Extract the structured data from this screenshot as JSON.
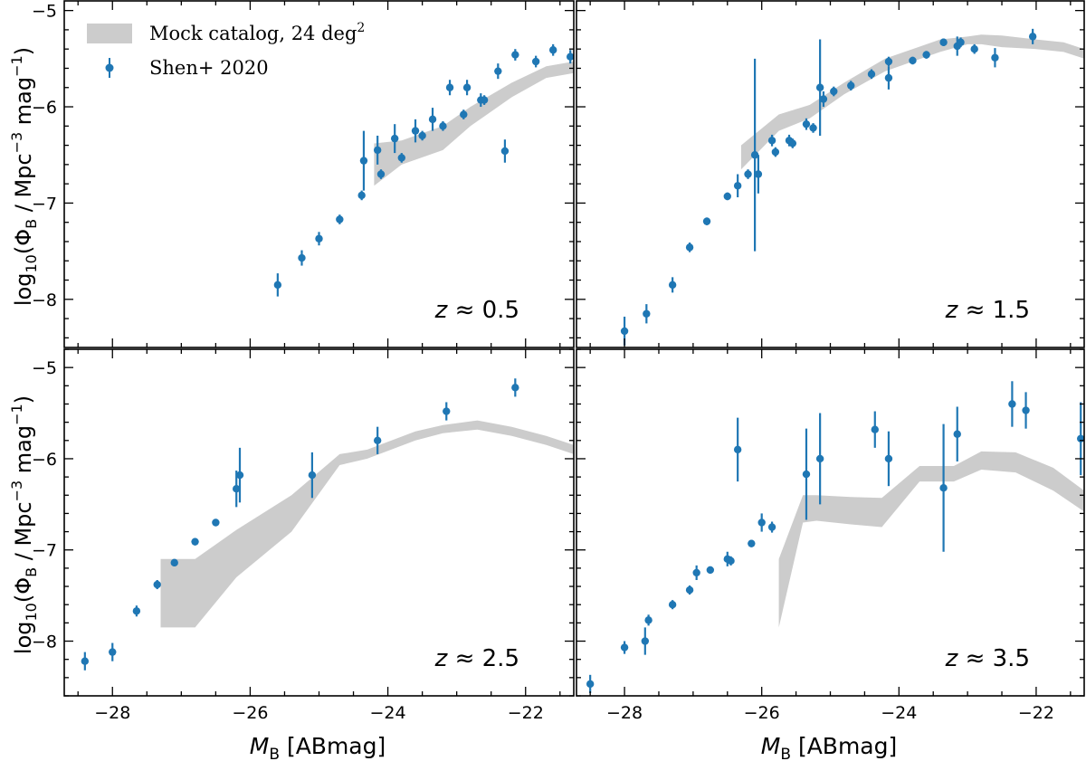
{
  "legend": {
    "band_label": "Mock catalog, 24 deg",
    "band_label_sup": "2",
    "points_label": "Shen+ 2020"
  },
  "labels": {
    "ylabel_prefix": "log",
    "ylabel_sub": "10",
    "ylabel_open": "(Φ",
    "ylabel_phi_sub": "B",
    "ylabel_units": " / Mpc",
    "ylabel_exp1": "−3",
    "ylabel_mag": " mag",
    "ylabel_exp2": "−1",
    "ylabel_close": ")",
    "xlabel_M": "M",
    "xlabel_sub": "B",
    "xlabel_unit": " [ABmag]"
  },
  "colors": {
    "points": "#1f77b4",
    "band": "#cccccc",
    "axes": "#000000"
  },
  "chart_data": [
    {
      "type": "scatter",
      "panel": "top-left",
      "annotation": "z ≈ 0.5",
      "xlim": [
        -28.7,
        -21.3
      ],
      "ylim": [
        -8.5,
        -4.9
      ],
      "xticks": [
        -28,
        -26,
        -24,
        -22
      ],
      "yticks": [
        -8,
        -7,
        -6,
        -5
      ],
      "band": [
        {
          "x": -24.2,
          "lo": -6.82,
          "hi": -6.38
        },
        {
          "x": -23.8,
          "lo": -6.6,
          "hi": -6.35
        },
        {
          "x": -23.2,
          "lo": -6.45,
          "hi": -6.2
        },
        {
          "x": -22.8,
          "lo": -6.2,
          "hi": -6.0
        },
        {
          "x": -22.2,
          "lo": -5.9,
          "hi": -5.75
        },
        {
          "x": -21.7,
          "lo": -5.7,
          "hi": -5.58
        },
        {
          "x": -21.3,
          "lo": -5.65,
          "hi": -5.53
        }
      ],
      "points": [
        {
          "x": -25.6,
          "y": -7.85,
          "err": 0.12
        },
        {
          "x": -25.25,
          "y": -7.57,
          "err": 0.08
        },
        {
          "x": -25.0,
          "y": -7.37,
          "err": 0.07
        },
        {
          "x": -24.7,
          "y": -7.17,
          "err": 0.05
        },
        {
          "x": -24.38,
          "y": -6.92,
          "err": 0.05
        },
        {
          "x": -24.35,
          "y": -6.56,
          "err": 0.31
        },
        {
          "x": -24.15,
          "y": -6.45,
          "err": 0.15
        },
        {
          "x": -24.1,
          "y": -6.7,
          "err": 0.05
        },
        {
          "x": -23.9,
          "y": -6.33,
          "err": 0.15
        },
        {
          "x": -23.8,
          "y": -6.53,
          "err": 0.05
        },
        {
          "x": -23.6,
          "y": -6.25,
          "err": 0.12
        },
        {
          "x": -23.5,
          "y": -6.3,
          "err": 0.05
        },
        {
          "x": -23.35,
          "y": -6.13,
          "err": 0.12
        },
        {
          "x": -23.2,
          "y": -6.2,
          "err": 0.05
        },
        {
          "x": -23.1,
          "y": -5.8,
          "err": 0.08
        },
        {
          "x": -22.9,
          "y": -6.08,
          "err": 0.05
        },
        {
          "x": -22.85,
          "y": -5.8,
          "err": 0.08
        },
        {
          "x": -22.65,
          "y": -5.93,
          "err": 0.07
        },
        {
          "x": -22.6,
          "y": -5.93,
          "err": 0.05
        },
        {
          "x": -22.4,
          "y": -5.63,
          "err": 0.08
        },
        {
          "x": -22.3,
          "y": -6.46,
          "err": 0.12
        },
        {
          "x": -22.15,
          "y": -5.46,
          "err": 0.06
        },
        {
          "x": -21.85,
          "y": -5.53,
          "err": 0.06
        },
        {
          "x": -21.6,
          "y": -5.41,
          "err": 0.06
        },
        {
          "x": -21.35,
          "y": -5.48,
          "err": 0.07
        }
      ]
    },
    {
      "type": "scatter",
      "panel": "top-right",
      "annotation": "z ≈ 1.5",
      "xlim": [
        -28.7,
        -21.3
      ],
      "ylim": [
        -8.5,
        -4.9
      ],
      "xticks": [
        -28,
        -26,
        -24,
        -22
      ],
      "yticks": [
        -8,
        -7,
        -6,
        -5
      ],
      "band": [
        {
          "x": -26.3,
          "lo": -6.65,
          "hi": -6.4
        },
        {
          "x": -25.75,
          "lo": -6.25,
          "hi": -6.08
        },
        {
          "x": -25.3,
          "lo": -6.12,
          "hi": -5.98
        },
        {
          "x": -24.8,
          "lo": -5.87,
          "hi": -5.75
        },
        {
          "x": -24.2,
          "lo": -5.63,
          "hi": -5.5
        },
        {
          "x": -23.4,
          "lo": -5.43,
          "hi": -5.3
        },
        {
          "x": -23.0,
          "lo": -5.35,
          "hi": -5.27
        },
        {
          "x": -22.8,
          "lo": -5.35,
          "hi": -5.25
        },
        {
          "x": -22.5,
          "lo": -5.38,
          "hi": -5.26
        },
        {
          "x": -22.0,
          "lo": -5.4,
          "hi": -5.3
        },
        {
          "x": -21.6,
          "lo": -5.43,
          "hi": -5.33
        },
        {
          "x": -21.3,
          "lo": -5.5,
          "hi": -5.4
        }
      ],
      "points": [
        {
          "x": -28.0,
          "y": -8.33,
          "err": 0.15
        },
        {
          "x": -27.68,
          "y": -8.15,
          "err": 0.1
        },
        {
          "x": -27.3,
          "y": -7.85,
          "err": 0.08
        },
        {
          "x": -27.05,
          "y": -7.46,
          "err": 0.05
        },
        {
          "x": -26.8,
          "y": -7.19,
          "err": 0.04
        },
        {
          "x": -26.5,
          "y": -6.93,
          "err": 0.04
        },
        {
          "x": -26.35,
          "y": -6.82,
          "err": 0.12
        },
        {
          "x": -26.2,
          "y": -6.7,
          "err": 0.05
        },
        {
          "x": -26.1,
          "y": -6.5,
          "err": 1.0
        },
        {
          "x": -26.05,
          "y": -6.7,
          "err": 0.2
        },
        {
          "x": -25.85,
          "y": -6.35,
          "err": 0.06
        },
        {
          "x": -25.8,
          "y": -6.47,
          "err": 0.05
        },
        {
          "x": -25.6,
          "y": -6.35,
          "err": 0.06
        },
        {
          "x": -25.55,
          "y": -6.38,
          "err": 0.05
        },
        {
          "x": -25.35,
          "y": -6.18,
          "err": 0.06
        },
        {
          "x": -25.25,
          "y": -6.22,
          "err": 0.05
        },
        {
          "x": -25.15,
          "y": -5.8,
          "err": 0.5
        },
        {
          "x": -25.1,
          "y": -5.92,
          "err": 0.08
        },
        {
          "x": -24.95,
          "y": -5.84,
          "err": 0.05
        },
        {
          "x": -24.7,
          "y": -5.78,
          "err": 0.05
        },
        {
          "x": -24.4,
          "y": -5.66,
          "err": 0.05
        },
        {
          "x": -24.15,
          "y": -5.7,
          "err": 0.12
        },
        {
          "x": -24.15,
          "y": -5.53,
          "err": 0.05
        },
        {
          "x": -23.8,
          "y": -5.52,
          "err": 0.04
        },
        {
          "x": -23.6,
          "y": -5.46,
          "err": 0.04
        },
        {
          "x": -23.35,
          "y": -5.33,
          "err": 0.04
        },
        {
          "x": -23.15,
          "y": -5.37,
          "err": 0.1
        },
        {
          "x": -23.1,
          "y": -5.33,
          "err": 0.05
        },
        {
          "x": -22.9,
          "y": -5.4,
          "err": 0.05
        },
        {
          "x": -22.6,
          "y": -5.49,
          "err": 0.1
        },
        {
          "x": -22.05,
          "y": -5.27,
          "err": 0.08
        }
      ]
    },
    {
      "type": "scatter",
      "panel": "bottom-left",
      "annotation": "z ≈ 2.5",
      "xlim": [
        -28.7,
        -21.3
      ],
      "ylim": [
        -8.6,
        -4.8
      ],
      "xticks": [
        -28,
        -26,
        -24,
        -22
      ],
      "yticks": [
        -8,
        -7,
        -6,
        -5
      ],
      "band": [
        {
          "x": -27.3,
          "lo": -7.85,
          "hi": -7.1
        },
        {
          "x": -26.8,
          "lo": -7.85,
          "hi": -7.1
        },
        {
          "x": -26.2,
          "lo": -7.3,
          "hi": -6.78
        },
        {
          "x": -25.4,
          "lo": -6.8,
          "hi": -6.4
        },
        {
          "x": -24.7,
          "lo": -6.07,
          "hi": -5.95
        },
        {
          "x": -24.3,
          "lo": -6.0,
          "hi": -5.9
        },
        {
          "x": -23.6,
          "lo": -5.8,
          "hi": -5.7
        },
        {
          "x": -23.2,
          "lo": -5.72,
          "hi": -5.63
        },
        {
          "x": -22.7,
          "lo": -5.68,
          "hi": -5.58
        },
        {
          "x": -22.2,
          "lo": -5.75,
          "hi": -5.65
        },
        {
          "x": -21.7,
          "lo": -5.85,
          "hi": -5.75
        },
        {
          "x": -21.3,
          "lo": -5.95,
          "hi": -5.85
        }
      ],
      "points": [
        {
          "x": -28.4,
          "y": -8.22,
          "err": 0.1
        },
        {
          "x": -28.0,
          "y": -8.12,
          "err": 0.1
        },
        {
          "x": -27.65,
          "y": -7.67,
          "err": 0.06
        },
        {
          "x": -27.35,
          "y": -7.38,
          "err": 0.05
        },
        {
          "x": -27.1,
          "y": -7.14,
          "err": 0.04
        },
        {
          "x": -26.8,
          "y": -6.91,
          "err": 0.04
        },
        {
          "x": -26.5,
          "y": -6.7,
          "err": 0.04
        },
        {
          "x": -26.2,
          "y": -6.33,
          "err": 0.2
        },
        {
          "x": -26.15,
          "y": -6.18,
          "err": 0.3
        },
        {
          "x": -25.1,
          "y": -6.18,
          "err": 0.25
        },
        {
          "x": -24.15,
          "y": -5.8,
          "err": 0.15
        },
        {
          "x": -23.15,
          "y": -5.48,
          "err": 0.1
        },
        {
          "x": -22.15,
          "y": -5.22,
          "err": 0.1
        }
      ]
    },
    {
      "type": "scatter",
      "panel": "bottom-right",
      "annotation": "z ≈ 3.5",
      "xlim": [
        -28.7,
        -21.3
      ],
      "ylim": [
        -8.6,
        -4.8
      ],
      "xticks": [
        -28,
        -26,
        -24,
        -22
      ],
      "yticks": [
        -8,
        -7,
        -6,
        -5
      ],
      "band": [
        {
          "x": -25.75,
          "lo": -7.85,
          "hi": -7.1
        },
        {
          "x": -25.4,
          "lo": -6.7,
          "hi": -6.4
        },
        {
          "x": -25.2,
          "lo": -6.68,
          "hi": -6.4
        },
        {
          "x": -24.7,
          "lo": -6.72,
          "hi": -6.42
        },
        {
          "x": -24.25,
          "lo": -6.75,
          "hi": -6.43
        },
        {
          "x": -23.7,
          "lo": -6.25,
          "hi": -6.08
        },
        {
          "x": -23.2,
          "lo": -6.25,
          "hi": -6.08
        },
        {
          "x": -22.8,
          "lo": -6.12,
          "hi": -5.92
        },
        {
          "x": -22.3,
          "lo": -6.15,
          "hi": -5.93
        },
        {
          "x": -21.75,
          "lo": -6.35,
          "hi": -6.1
        },
        {
          "x": -21.3,
          "lo": -6.58,
          "hi": -6.35
        }
      ],
      "points": [
        {
          "x": -28.5,
          "y": -8.47,
          "err": 0.1
        },
        {
          "x": -28.0,
          "y": -8.07,
          "err": 0.07
        },
        {
          "x": -27.7,
          "y": -8.0,
          "err": 0.15
        },
        {
          "x": -27.65,
          "y": -7.77,
          "err": 0.06
        },
        {
          "x": -27.3,
          "y": -7.6,
          "err": 0.05
        },
        {
          "x": -27.05,
          "y": -7.44,
          "err": 0.05
        },
        {
          "x": -26.95,
          "y": -7.25,
          "err": 0.08
        },
        {
          "x": -26.75,
          "y": -7.22,
          "err": 0.04
        },
        {
          "x": -26.5,
          "y": -7.1,
          "err": 0.08
        },
        {
          "x": -26.45,
          "y": -7.12,
          "err": 0.05
        },
        {
          "x": -26.35,
          "y": -5.9,
          "err": 0.35
        },
        {
          "x": -26.15,
          "y": -6.93,
          "err": 0.04
        },
        {
          "x": -26.0,
          "y": -6.7,
          "err": 0.1
        },
        {
          "x": -25.85,
          "y": -6.75,
          "err": 0.06
        },
        {
          "x": -25.35,
          "y": -6.17,
          "err": 0.5
        },
        {
          "x": -25.15,
          "y": -6.0,
          "err": 0.5
        },
        {
          "x": -24.35,
          "y": -5.68,
          "err": 0.2
        },
        {
          "x": -24.15,
          "y": -6.0,
          "err": 0.3
        },
        {
          "x": -23.35,
          "y": -6.32,
          "err": 0.7
        },
        {
          "x": -23.15,
          "y": -5.73,
          "err": 0.3
        },
        {
          "x": -22.35,
          "y": -5.4,
          "err": 0.25
        },
        {
          "x": -22.15,
          "y": -5.47,
          "err": 0.2
        },
        {
          "x": -21.35,
          "y": -5.78,
          "err": 0.4
        }
      ]
    }
  ]
}
